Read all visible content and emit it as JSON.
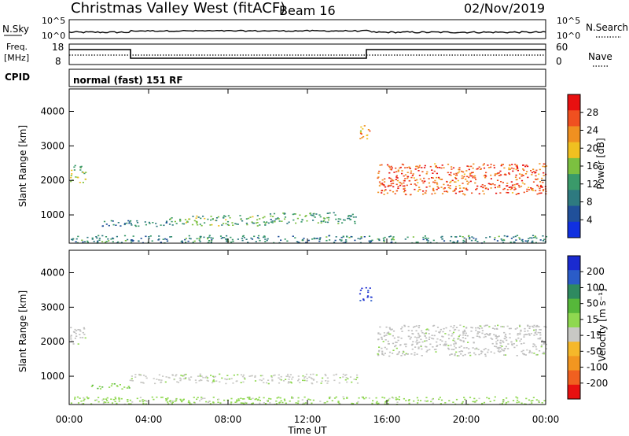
{
  "header": {
    "title": "Christmas Valley West (fitACF)",
    "beam": "Beam 16",
    "date": "02/Nov/2019"
  },
  "status_panels": {
    "nsky_label": "N.Sky",
    "nsky_ticks": [
      "10^5",
      "10^0"
    ],
    "nsearch_label": "N.Search",
    "nsearch_ticks": [
      "10^5",
      "10^0"
    ],
    "freq_label_1": "Freq.",
    "freq_label_2": "[MHz]",
    "freq_ticks": [
      "18",
      "8"
    ],
    "nave_label": "Nave",
    "nave_ticks": [
      "60",
      "0"
    ],
    "cpid_label": "CPID",
    "cpid_text": "normal (fast) 151 RF"
  },
  "colors": {
    "power_scale": [
      "#1030e0",
      "#20509a",
      "#2e7a80",
      "#3a9a6a",
      "#7cc040",
      "#f0c020",
      "#f09020",
      "#f05020",
      "#e81010"
    ],
    "velocity_scale": [
      "#1a2ad0",
      "#2a5cc8",
      "#2e8a60",
      "#56b83a",
      "#8fd850",
      "#c8c8c4",
      "#f5b82a",
      "#f29620",
      "#f06020",
      "#e81010"
    ],
    "ground_scatter": "#bebebe"
  },
  "chart_data": [
    {
      "type": "heatmap",
      "panel": "power",
      "xlabel": "",
      "ylabel": "Slant Range [km]",
      "x_ticks": [
        "00:00",
        "04:00",
        "08:00",
        "12:00",
        "16:00",
        "20:00",
        "00:00"
      ],
      "y_ticks": [
        "1000",
        "2000",
        "3000",
        "4000"
      ],
      "ylim": [
        180,
        4650
      ],
      "colorbar": {
        "label": "Power [dB]",
        "ticks": [
          "4",
          "8",
          "12",
          "16",
          "20",
          "24",
          "28"
        ],
        "range": [
          0,
          32
        ]
      },
      "echo_regions": [
        {
          "t_start": 0.0,
          "t_end": 0.8,
          "r_min": 1950,
          "r_max": 2450,
          "value": 16
        },
        {
          "t_start": 1.5,
          "t_end": 5.0,
          "r_min": 680,
          "r_max": 850,
          "value": 9
        },
        {
          "t_start": 5.0,
          "t_end": 10.0,
          "r_min": 700,
          "r_max": 1000,
          "value": 14
        },
        {
          "t_start": 10.0,
          "t_end": 14.5,
          "r_min": 760,
          "r_max": 1080,
          "value": 12
        },
        {
          "t_start": 14.6,
          "t_end": 15.2,
          "r_min": 3200,
          "r_max": 3600,
          "value": 22
        },
        {
          "t_start": 15.5,
          "t_end": 24.0,
          "r_min": 1600,
          "r_max": 2500,
          "value": 26
        },
        {
          "t_start": 0.0,
          "t_end": 24.0,
          "r_min": 200,
          "r_max": 420,
          "value": 10
        }
      ]
    },
    {
      "type": "heatmap",
      "panel": "velocity",
      "xlabel": "Time UT",
      "ylabel": "Slant Range [km]",
      "x_ticks": [
        "00:00",
        "04:00",
        "08:00",
        "12:00",
        "16:00",
        "20:00",
        "00:00"
      ],
      "y_ticks": [
        "1000",
        "2000",
        "3000",
        "4000"
      ],
      "ylim": [
        180,
        4650
      ],
      "colorbar": {
        "label": "Velocity [m s⁻¹]",
        "ticks": [
          "200",
          "100",
          "50",
          "15",
          "-15",
          "-50",
          "-100",
          "-200"
        ],
        "range": [
          -250,
          250
        ]
      },
      "echo_regions": [
        {
          "t_start": 0.0,
          "t_end": 0.8,
          "r_min": 1950,
          "r_max": 2450,
          "value": 0
        },
        {
          "t_start": 1.0,
          "t_end": 3.0,
          "r_min": 650,
          "r_max": 800,
          "value": 40
        },
        {
          "t_start": 3.0,
          "t_end": 14.5,
          "r_min": 800,
          "r_max": 1080,
          "value": -20
        },
        {
          "t_start": 14.6,
          "t_end": 15.2,
          "r_min": 3200,
          "r_max": 3600,
          "value": 210
        },
        {
          "t_start": 15.5,
          "t_end": 24.0,
          "r_min": 1600,
          "r_max": 2500,
          "value": 0
        },
        {
          "t_start": 0.0,
          "t_end": 24.0,
          "r_min": 200,
          "r_max": 420,
          "value": 20
        }
      ]
    }
  ]
}
